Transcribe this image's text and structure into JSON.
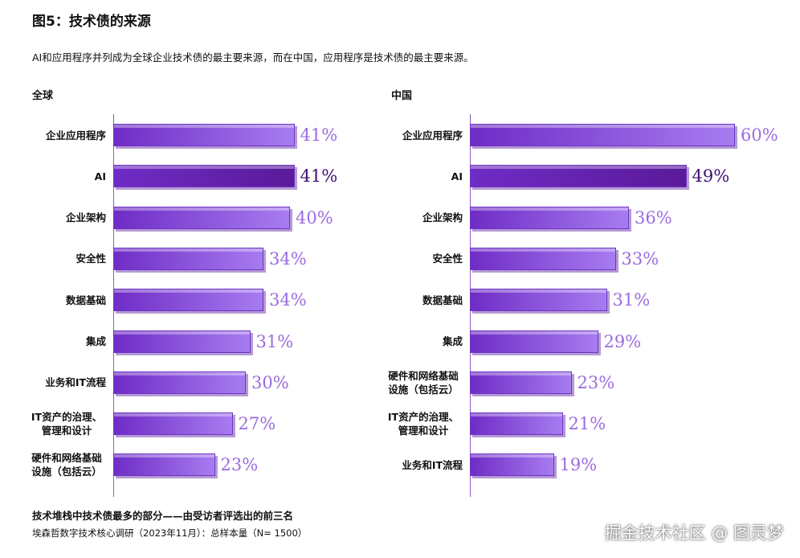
{
  "title": "图5：技术债的来源",
  "subtitle": "AI和应用程序并列成为全球企业技术债的最主要来源，而在中国，应用程序是技术债的最主要来源。",
  "footnote": "技术堆栈中技术债最多的部分——由受访者评选出的前三名",
  "source": "埃森哲数字技术核心调研（2023年11月）：总样本量（N= 1500）",
  "watermark": "掘金技术社区 @ 图灵梦",
  "chart_data": [
    {
      "type": "bar",
      "orientation": "horizontal",
      "title": "全球",
      "categories": [
        "企业应用程序",
        "AI",
        "企业架构",
        "安全性",
        "数据基础",
        "集成",
        "业务和IT流程",
        "IT资产的治理、管理和设计",
        "硬件和网络基础设施（包括云）"
      ],
      "values": [
        41,
        41,
        40,
        34,
        34,
        31,
        30,
        27,
        23
      ],
      "value_labels": [
        "41%",
        "41%",
        "40%",
        "34%",
        "34%",
        "31%",
        "30%",
        "27%",
        "23%"
      ],
      "colors": [
        "#a77cf0",
        "#5a1a9a",
        "#a77cf0",
        "#a77cf0",
        "#a77cf0",
        "#a77cf0",
        "#a77cf0",
        "#a77cf0",
        "#a77cf0"
      ]
    },
    {
      "type": "bar",
      "orientation": "horizontal",
      "title": "中国",
      "categories": [
        "企业应用程序",
        "AI",
        "企业架构",
        "安全性",
        "数据基础",
        "集成",
        "硬件和网络基础设施（包括云）",
        "IT资产的治理、管理和设计",
        "业务和IT流程"
      ],
      "values": [
        60,
        49,
        36,
        33,
        31,
        29,
        23,
        21,
        19
      ],
      "value_labels": [
        "60%",
        "49%",
        "36%",
        "33%",
        "31%",
        "29%",
        "23%",
        "21%",
        "19%"
      ],
      "colors": [
        "#a77cf0",
        "#5a1a9a",
        "#a77cf0",
        "#a77cf0",
        "#a77cf0",
        "#a77cf0",
        "#a77cf0",
        "#a77cf0",
        "#a77cf0"
      ]
    }
  ]
}
